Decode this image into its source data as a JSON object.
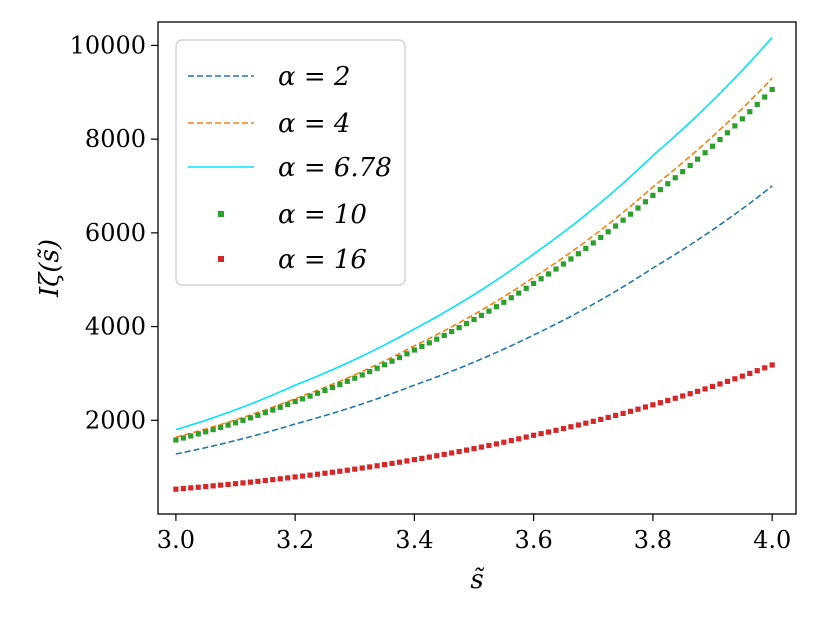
{
  "chart_data": {
    "type": "line",
    "xlabel": "s̃",
    "ylabel": "Iζ(s̃)",
    "xlim": [
      2.97,
      4.04
    ],
    "ylim": [
      0,
      10500
    ],
    "x_ticks": [
      "3.0",
      "3.2",
      "3.4",
      "3.6",
      "3.8",
      "4.0"
    ],
    "x_tick_values": [
      3.0,
      3.2,
      3.4,
      3.6,
      3.8,
      4.0
    ],
    "y_ticks": [
      "2000",
      "4000",
      "6000",
      "8000",
      "10000"
    ],
    "y_tick_values": [
      2000,
      4000,
      6000,
      8000,
      10000
    ],
    "grid": false,
    "legend_position": "top-left",
    "series": [
      {
        "name": "α = 2",
        "style": "dashed",
        "color": "#1f77b4",
        "x": [
          3.0,
          3.2,
          3.4,
          3.6,
          3.8,
          4.0
        ],
        "y": [
          1280,
          1920,
          2750,
          3820,
          5250,
          7000
        ]
      },
      {
        "name": "α = 4",
        "style": "dashed",
        "color": "#ff7f0e",
        "x": [
          3.0,
          3.2,
          3.4,
          3.6,
          3.8,
          4.0
        ],
        "y": [
          1640,
          2460,
          3590,
          5050,
          6980,
          9300
        ]
      },
      {
        "name": "α = 6.78",
        "style": "solid",
        "color": "#00e5ff",
        "x": [
          3.0,
          3.2,
          3.4,
          3.6,
          3.8,
          4.0
        ],
        "y": [
          1800,
          2750,
          3950,
          5550,
          7650,
          10170
        ]
      },
      {
        "name": "α = 10",
        "style": "markers",
        "color": "#2ca02c",
        "x": [
          3.0,
          3.2,
          3.4,
          3.6,
          3.8,
          4.0
        ],
        "y": [
          1580,
          2400,
          3500,
          4920,
          6800,
          9060
        ]
      },
      {
        "name": "α = 16",
        "style": "markers",
        "color": "#d62728",
        "x": [
          3.0,
          3.2,
          3.4,
          3.6,
          3.8,
          4.0
        ],
        "y": [
          530,
          790,
          1160,
          1680,
          2330,
          3180
        ]
      }
    ]
  }
}
